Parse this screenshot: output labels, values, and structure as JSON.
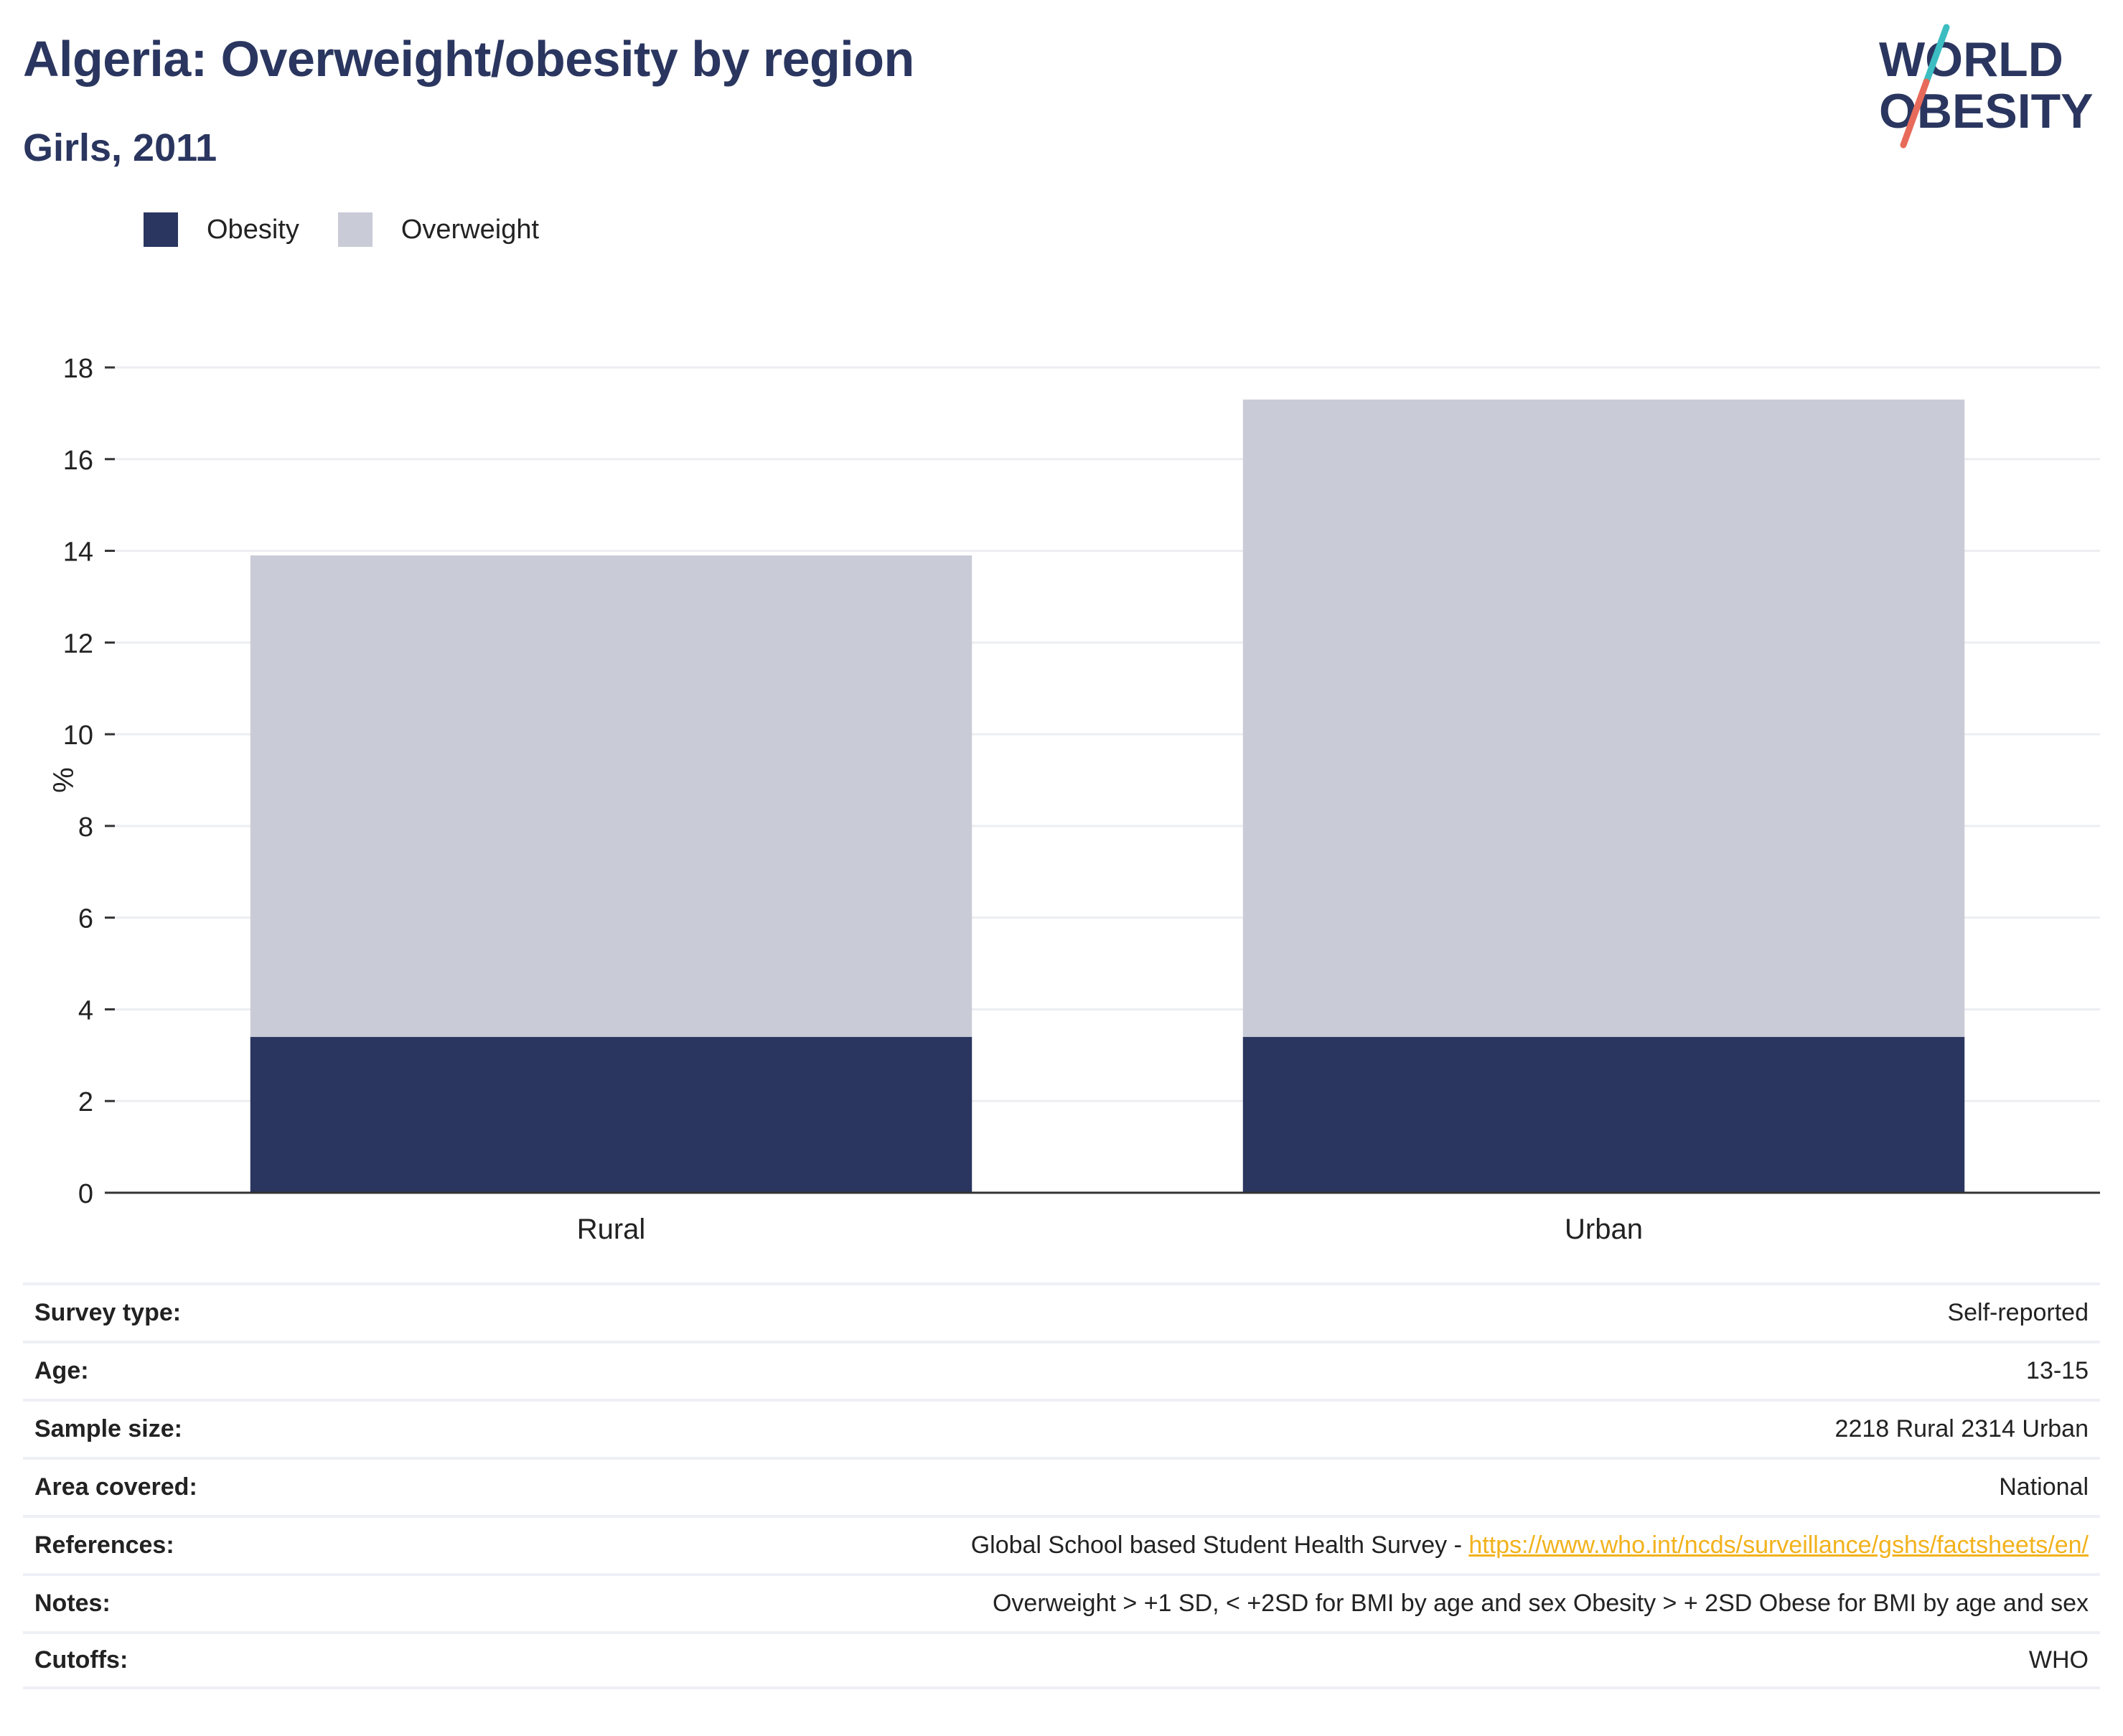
{
  "header": {
    "title": "Algeria: Overweight/obesity by region",
    "subtitle": "Girls, 2011"
  },
  "logo": {
    "line1": "WORLD",
    "line2": "OBESITY",
    "colors": {
      "text": "#2a365f",
      "slash_top": "#3bbdc1",
      "slash_bottom": "#e86a5a"
    }
  },
  "legend": [
    {
      "label": "Obesity",
      "color": "#2a365f"
    },
    {
      "label": "Overweight",
      "color": "#c9cbd7"
    }
  ],
  "chart_data": {
    "type": "bar",
    "stacked": true,
    "categories": [
      "Rural",
      "Urban"
    ],
    "series": [
      {
        "name": "Obesity",
        "color": "#2a365f",
        "values": [
          3.4,
          3.4
        ]
      },
      {
        "name": "Overweight",
        "color": "#c9cbd7",
        "values": [
          10.5,
          13.9
        ]
      }
    ],
    "ylabel": "%",
    "ylim": [
      0,
      18
    ],
    "yticks": [
      "0",
      "2",
      "4",
      "6",
      "8",
      "10",
      "12",
      "14",
      "16",
      "18"
    ],
    "grid": true,
    "legend_position": "top-left"
  },
  "info": {
    "survey_type": {
      "label": "Survey type:",
      "value": "Self-reported"
    },
    "age": {
      "label": "Age:",
      "value": "13-15"
    },
    "sample_size": {
      "label": "Sample size:",
      "value": "2218 Rural 2314 Urban"
    },
    "area_covered": {
      "label": "Area covered:",
      "value": "National"
    },
    "references": {
      "label": "References:",
      "value": "Global School based Student Health Survey - ",
      "link": "https://www.who.int/ncds/surveillance/gshs/factsheets/en/"
    },
    "notes": {
      "label": "Notes:",
      "value": "Overweight > +1 SD, < +2SD for BMI by age and sex Obesity > + 2SD Obese for BMI by age and sex"
    },
    "cutoffs": {
      "label": "Cutoffs:",
      "value": "WHO"
    }
  }
}
